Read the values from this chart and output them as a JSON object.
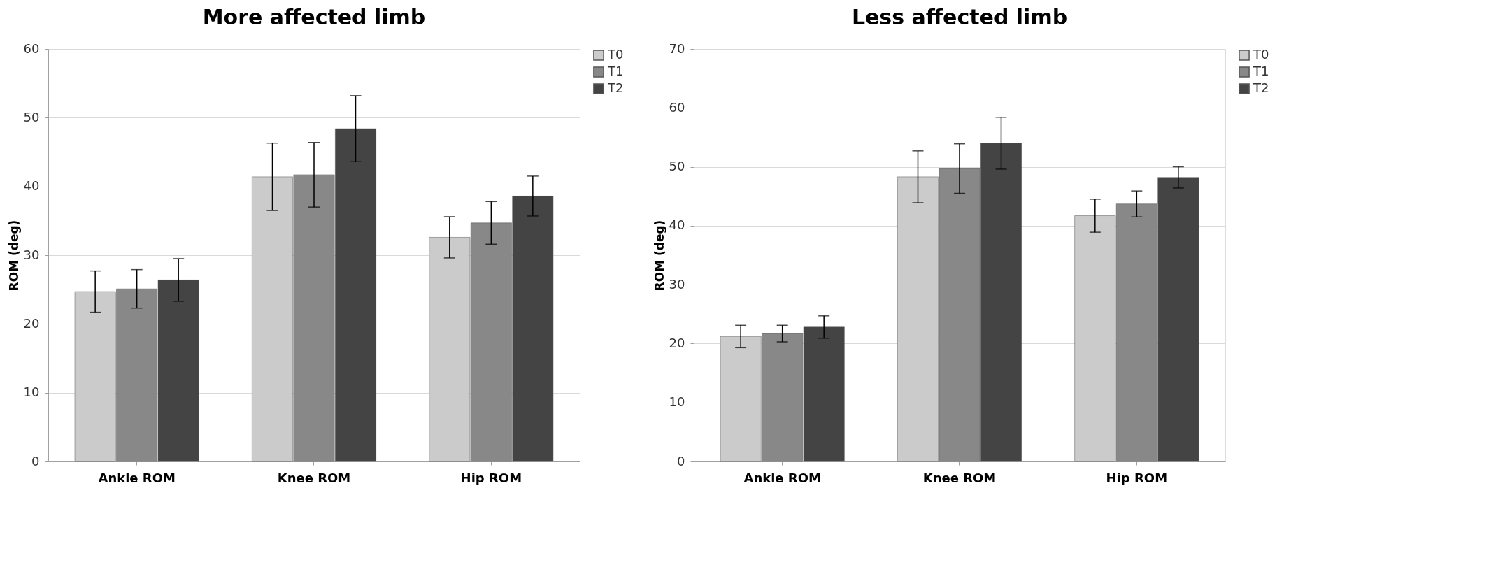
{
  "chart_data": [
    {
      "type": "bar",
      "title": "More affected limb",
      "ylabel": "ROM (deg)",
      "categories": [
        "Ankle ROM",
        "Knee ROM",
        "Hip ROM"
      ],
      "ylim": [
        0,
        60
      ],
      "yticks": [
        0,
        10,
        20,
        30,
        40,
        50,
        60
      ],
      "grid": "y",
      "legend": "right",
      "series": [
        {
          "name": "T0",
          "color": "#cbcbcb",
          "values": [
            24.7,
            41.4,
            32.6
          ],
          "errors": [
            3.0,
            4.9,
            3.0
          ]
        },
        {
          "name": "T1",
          "color": "#888888",
          "values": [
            25.1,
            41.7,
            34.7
          ],
          "errors": [
            2.8,
            4.7,
            3.1
          ]
        },
        {
          "name": "T2",
          "color": "#444444",
          "values": [
            26.4,
            48.4,
            38.6
          ],
          "errors": [
            3.1,
            4.8,
            2.9
          ]
        }
      ]
    },
    {
      "type": "bar",
      "title": "Less affected limb",
      "ylabel": "ROM (deg)",
      "categories": [
        "Ankle ROM",
        "Knee ROM",
        "Hip ROM"
      ],
      "ylim": [
        0,
        70
      ],
      "yticks": [
        0,
        10,
        20,
        30,
        40,
        50,
        60,
        70
      ],
      "grid": "y",
      "legend": "right",
      "series": [
        {
          "name": "T0",
          "color": "#cbcbcb",
          "values": [
            21.2,
            48.3,
            41.7
          ],
          "errors": [
            1.9,
            4.4,
            2.8
          ]
        },
        {
          "name": "T1",
          "color": "#888888",
          "values": [
            21.7,
            49.7,
            43.7
          ],
          "errors": [
            1.4,
            4.2,
            2.2
          ]
        },
        {
          "name": "T2",
          "color": "#444444",
          "values": [
            22.8,
            54.0,
            48.2
          ],
          "errors": [
            1.9,
            4.4,
            1.8
          ]
        }
      ]
    }
  ]
}
